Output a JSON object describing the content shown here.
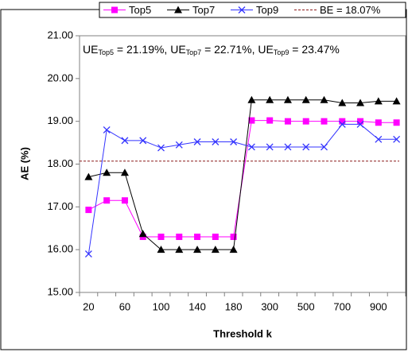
{
  "chart_data": {
    "type": "line",
    "x_label": "Threshold k",
    "y_label": "AE (%)",
    "categories": [
      "20",
      null,
      "60",
      null,
      "100",
      null,
      "140",
      null,
      "180",
      null,
      "300",
      null,
      "500",
      null,
      "700",
      null,
      "900",
      null
    ],
    "series": [
      {
        "name": "Top5",
        "color": "#ff00ff",
        "marker": "square",
        "values": [
          16.93,
          17.15,
          17.15,
          16.3,
          16.3,
          16.3,
          16.3,
          16.3,
          16.3,
          19.02,
          19.02,
          19.0,
          19.0,
          19.0,
          19.0,
          19.0,
          18.97,
          18.97
        ]
      },
      {
        "name": "Top7",
        "color": "#000000",
        "marker": "triangle",
        "values": [
          17.7,
          17.8,
          17.8,
          16.37,
          16.0,
          16.0,
          16.0,
          16.0,
          16.0,
          19.5,
          19.5,
          19.5,
          19.5,
          19.5,
          19.43,
          19.43,
          19.47,
          19.47
        ]
      },
      {
        "name": "Top9",
        "color": "#3333ff",
        "marker": "x",
        "values": [
          15.9,
          18.8,
          18.55,
          18.55,
          18.38,
          18.45,
          18.52,
          18.52,
          18.52,
          18.4,
          18.4,
          18.4,
          18.4,
          18.4,
          18.93,
          18.93,
          18.58,
          18.58
        ]
      }
    ],
    "reference": {
      "name": "BE = 18.07%",
      "value": 18.07,
      "color": "#8b1a1a"
    },
    "annotation": [
      {
        "text": "UE",
        "sub": false
      },
      {
        "text": "Top5",
        "sub": true
      },
      {
        "text": " = 21.19%, ",
        "sub": false
      },
      {
        "text": "UE",
        "sub": false
      },
      {
        "text": "Top7",
        "sub": true
      },
      {
        "text": " = 22.71%, ",
        "sub": false
      },
      {
        "text": "UE",
        "sub": false
      },
      {
        "text": "Top9",
        "sub": true
      },
      {
        "text": " = 23.47%",
        "sub": false
      }
    ],
    "ylim": [
      15,
      21
    ],
    "yticks": [
      {
        "value": 15,
        "label": "15.00"
      },
      {
        "value": 16,
        "label": "16.00"
      },
      {
        "value": 17,
        "label": "17.00"
      },
      {
        "value": 18,
        "label": "18.00"
      },
      {
        "value": 19,
        "label": "19.00"
      },
      {
        "value": 20,
        "label": "20.00"
      },
      {
        "value": 21,
        "label": "21.00"
      }
    ],
    "legend": "top"
  }
}
